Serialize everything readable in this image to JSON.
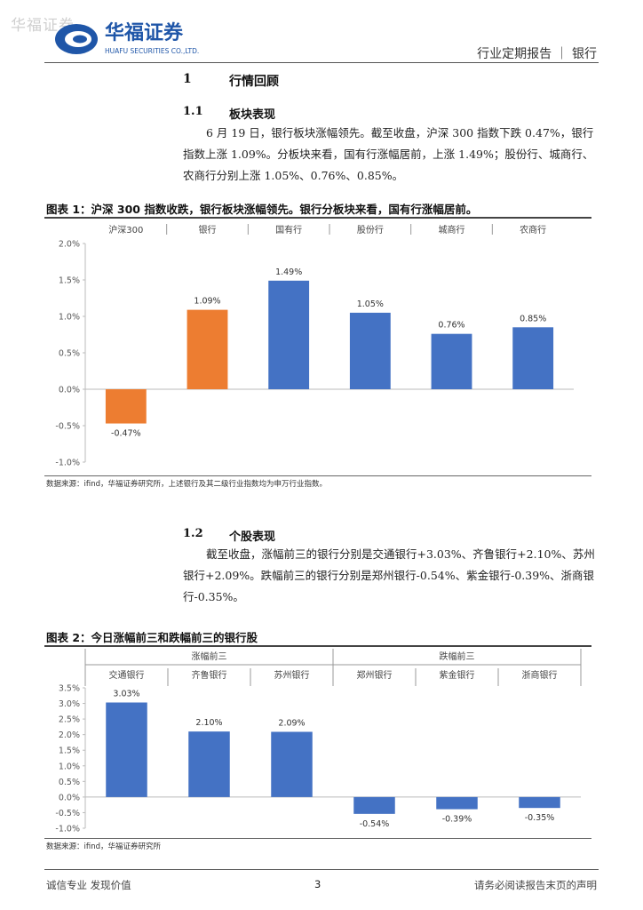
{
  "header": {
    "watermark": "华福证券",
    "logo_cn": "华福证券",
    "logo_en": "HUAFU SECURITIES CO.,LTD.",
    "report_type": "行业定期报告 ｜ 银行"
  },
  "section1": {
    "num": "1",
    "title": "行情回顾"
  },
  "section1_1": {
    "num": "1.1",
    "title": "板块表现",
    "text": "6 月 19 日，银行板块涨幅领先。截至收盘，沪深 300 指数下跌 0.47%，银行指数上涨 1.09%。分板块来看，国有行涨幅居前，上涨 1.49%；股份行、城商行、农商行分别上涨 1.05%、0.76%、0.85%。"
  },
  "figure1": {
    "title": "图表 1：沪深 300 指数收跌，银行板块涨幅领先。银行分板块来看，国有行涨幅居前。",
    "source": "数据来源：ifind，华福证券研究所，上述银行及其二级行业指数均为申万行业指数。"
  },
  "section1_2": {
    "num": "1.2",
    "title": "个股表现",
    "text": "截至收盘，涨幅前三的银行分别是交通银行+3.03%、齐鲁银行+2.10%、苏州银行+2.09%。跌幅前三的银行分别是郑州银行-0.54%、紫金银行-0.39%、浙商银行-0.35%。"
  },
  "figure2": {
    "title": "图表 2：今日涨幅前三和跌幅前三的银行股",
    "source": "数据来源：ifind，华福证券研究所"
  },
  "footer": {
    "left": "诚信专业  发现价值",
    "page": "3",
    "right": "请务必阅读报告末页的声明"
  },
  "chart_data": [
    {
      "type": "bar",
      "categories": [
        "沪深300",
        "银行",
        "国有行",
        "股份行",
        "城商行",
        "农商行"
      ],
      "values": [
        -0.47,
        1.09,
        1.49,
        1.05,
        0.76,
        0.85
      ],
      "value_labels": [
        "-0.47%",
        "1.09%",
        "1.49%",
        "1.05%",
        "0.76%",
        "0.85%"
      ],
      "colors": [
        "#ED7D31",
        "#ED7D31",
        "#4472C4",
        "#4472C4",
        "#4472C4",
        "#4472C4"
      ],
      "yticks": [
        "2.0%",
        "1.5%",
        "1.0%",
        "0.5%",
        "0.0%",
        "-0.5%",
        "-1.0%"
      ],
      "ylim": [
        -1.0,
        2.0
      ],
      "grid": false
    },
    {
      "type": "bar",
      "groups": [
        "涨幅前三",
        "跌幅前三"
      ],
      "categories": [
        "交通银行",
        "齐鲁银行",
        "苏州银行",
        "郑州银行",
        "紫金银行",
        "浙商银行"
      ],
      "values": [
        3.03,
        2.1,
        2.09,
        -0.54,
        -0.39,
        -0.35
      ],
      "value_labels": [
        "3.03%",
        "2.10%",
        "2.09%",
        "-0.54%",
        "-0.39%",
        "-0.35%"
      ],
      "colors": [
        "#4472C4",
        "#4472C4",
        "#4472C4",
        "#4472C4",
        "#4472C4",
        "#4472C4"
      ],
      "yticks": [
        "3.5%",
        "3.0%",
        "2.5%",
        "2.0%",
        "1.5%",
        "1.0%",
        "0.5%",
        "0.0%",
        "-0.5%",
        "-1.0%"
      ],
      "ylim": [
        -1.0,
        3.5
      ],
      "grid": false
    }
  ]
}
